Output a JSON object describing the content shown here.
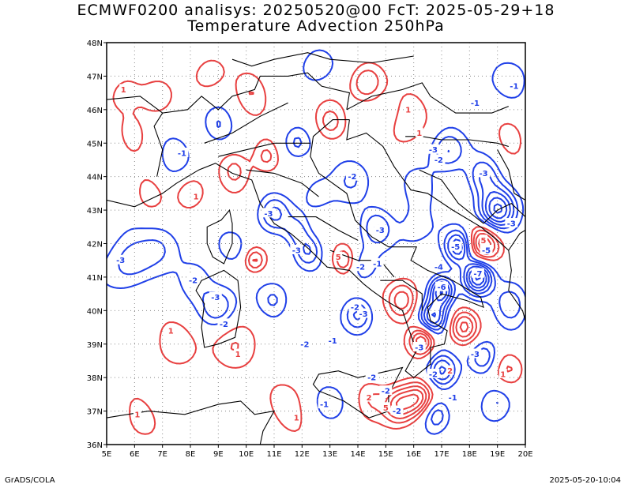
{
  "title_line1": "ECMWF0200 analisys: 20250520@00 FcT: 2025-05-29+18",
  "title_line2": "Temperature Advection 250hPa",
  "footer_left": "GrADS/COLA",
  "footer_right": "2025-05-20-10:04",
  "map": {
    "lon_range": [
      5,
      20
    ],
    "lat_range": [
      36,
      48
    ],
    "lon_ticks": [
      "5E",
      "6E",
      "7E",
      "8E",
      "9E",
      "10E",
      "11E",
      "12E",
      "13E",
      "14E",
      "15E",
      "16E",
      "17E",
      "18E",
      "19E",
      "20E"
    ],
    "lat_ticks": [
      "36N",
      "37N",
      "38N",
      "39N",
      "40N",
      "41N",
      "42N",
      "43N",
      "44N",
      "45N",
      "46N",
      "47N",
      "48N"
    ],
    "colors": {
      "positive": "#e84040",
      "negative": "#2040e8",
      "coast": "#000000",
      "border": "#000000",
      "grid": "#888888"
    },
    "contour_labels": [
      {
        "text": "1",
        "lon": 5.6,
        "lat": 46.6,
        "sign": "pos"
      },
      {
        "text": "-1",
        "lon": 7.7,
        "lat": 44.7,
        "sign": "neg"
      },
      {
        "text": "1",
        "lon": 8.2,
        "lat": 43.4,
        "sign": "pos"
      },
      {
        "text": "-3",
        "lon": 5.5,
        "lat": 41.5,
        "sign": "neg"
      },
      {
        "text": "-3",
        "lon": 10.8,
        "lat": 42.9,
        "sign": "neg"
      },
      {
        "text": "-2",
        "lon": 8.1,
        "lat": 40.9,
        "sign": "neg"
      },
      {
        "text": "-3",
        "lon": 8.9,
        "lat": 40.4,
        "sign": "neg"
      },
      {
        "text": "1",
        "lon": 7.3,
        "lat": 39.4,
        "sign": "pos"
      },
      {
        "text": "-2",
        "lon": 9.2,
        "lat": 39.6,
        "sign": "neg"
      },
      {
        "text": "1",
        "lon": 9.7,
        "lat": 38.7,
        "sign": "pos"
      },
      {
        "text": "1",
        "lon": 6.1,
        "lat": 36.9,
        "sign": "pos"
      },
      {
        "text": "-1",
        "lon": 13.1,
        "lat": 39.1,
        "sign": "neg"
      },
      {
        "text": "-2",
        "lon": 12.1,
        "lat": 39.0,
        "sign": "neg"
      },
      {
        "text": "-2",
        "lon": 13.8,
        "lat": 44.0,
        "sign": "neg"
      },
      {
        "text": "-3",
        "lon": 16.7,
        "lat": 44.8,
        "sign": "neg"
      },
      {
        "text": "-2",
        "lon": 16.9,
        "lat": 44.5,
        "sign": "neg"
      },
      {
        "text": "-3",
        "lon": 18.5,
        "lat": 44.1,
        "sign": "neg"
      },
      {
        "text": "-1",
        "lon": 19.6,
        "lat": 46.7,
        "sign": "neg"
      },
      {
        "text": "-1",
        "lon": 18.2,
        "lat": 46.2,
        "sign": "neg"
      },
      {
        "text": "1",
        "lon": 15.8,
        "lat": 46.0,
        "sign": "pos"
      },
      {
        "text": "1",
        "lon": 16.2,
        "lat": 45.3,
        "sign": "pos"
      },
      {
        "text": "-5",
        "lon": 17.5,
        "lat": 41.9,
        "sign": "neg"
      },
      {
        "text": "5",
        "lon": 18.5,
        "lat": 42.1,
        "sign": "pos"
      },
      {
        "text": "-5",
        "lon": 18.6,
        "lat": 41.8,
        "sign": "neg"
      },
      {
        "text": "-4",
        "lon": 16.9,
        "lat": 41.3,
        "sign": "neg"
      },
      {
        "text": "-6",
        "lon": 17.0,
        "lat": 40.7,
        "sign": "neg"
      },
      {
        "text": "-7",
        "lon": 18.3,
        "lat": 41.1,
        "sign": "neg"
      },
      {
        "text": "-3",
        "lon": 19.5,
        "lat": 42.6,
        "sign": "neg"
      },
      {
        "text": "-3",
        "lon": 14.8,
        "lat": 42.4,
        "sign": "neg"
      },
      {
        "text": "-3",
        "lon": 14.2,
        "lat": 39.9,
        "sign": "neg"
      },
      {
        "text": "-2",
        "lon": 13.9,
        "lat": 40.1,
        "sign": "neg"
      },
      {
        "text": "-3",
        "lon": 16.2,
        "lat": 38.9,
        "sign": "neg"
      },
      {
        "text": "-2",
        "lon": 16.7,
        "lat": 38.1,
        "sign": "neg"
      },
      {
        "text": "-3",
        "lon": 18.2,
        "lat": 38.7,
        "sign": "neg"
      },
      {
        "text": "-2",
        "lon": 14.5,
        "lat": 38.0,
        "sign": "neg"
      },
      {
        "text": "-2",
        "lon": 15.0,
        "lat": 37.6,
        "sign": "neg"
      },
      {
        "text": "-2",
        "lon": 15.4,
        "lat": 37.0,
        "sign": "neg"
      },
      {
        "text": "-1",
        "lon": 17.4,
        "lat": 37.4,
        "sign": "neg"
      },
      {
        "text": "2",
        "lon": 17.3,
        "lat": 38.2,
        "sign": "pos"
      },
      {
        "text": "5",
        "lon": 15.0,
        "lat": 37.1,
        "sign": "pos"
      },
      {
        "text": "2",
        "lon": 14.4,
        "lat": 37.4,
        "sign": "pos"
      },
      {
        "text": "1",
        "lon": 11.8,
        "lat": 36.8,
        "sign": "pos"
      },
      {
        "text": "-1",
        "lon": 12.8,
        "lat": 37.2,
        "sign": "neg"
      },
      {
        "text": "1",
        "lon": 19.2,
        "lat": 38.1,
        "sign": "pos"
      },
      {
        "text": "5",
        "lon": 13.3,
        "lat": 41.6,
        "sign": "pos"
      },
      {
        "text": "-3",
        "lon": 11.8,
        "lat": 41.8,
        "sign": "neg"
      },
      {
        "text": "-2",
        "lon": 14.1,
        "lat": 41.3,
        "sign": "neg"
      },
      {
        "text": "-1",
        "lon": 14.7,
        "lat": 41.4,
        "sign": "neg"
      }
    ]
  }
}
